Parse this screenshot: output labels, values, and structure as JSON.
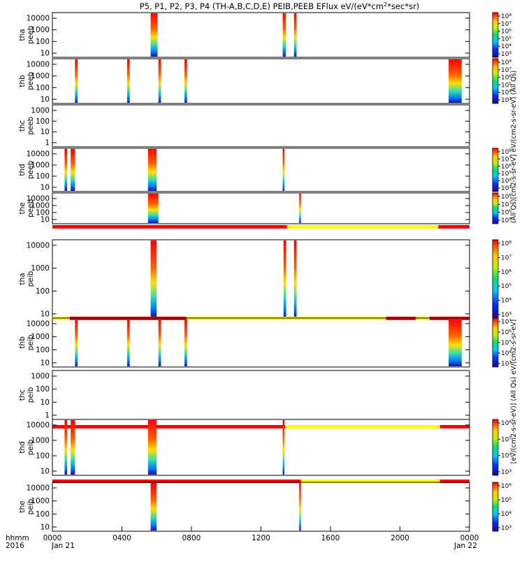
{
  "chart_data": {
    "type": "heatmap",
    "title": "P5, P1, P2, P3, P4 (TH-A,B,C,D,E) PEIB,PEEB EFlux eV/(eV*cm²*sec*sr)",
    "title_base": "P5, P1, P2, P3, P4 (TH-A,B,C,D,E) PEIB,PEEB EFlux eV/(eV*cm",
    "title_sup": "2",
    "title_end": "*sec*sr)",
    "x_axis": {
      "tick_labels": [
        "0000",
        "0400",
        "0800",
        "1200",
        "1600",
        "2000",
        "0000"
      ],
      "ticks_hours": [
        0,
        4,
        8,
        12,
        16,
        20,
        24
      ],
      "date_labels": [
        "Jan 21",
        "Jan 22"
      ],
      "row_label_1": "hhmm",
      "row_label_2": "2016",
      "range_hours": [
        0,
        24
      ]
    },
    "colorbar_label_top": "(All Qs)[cm2-s-sr-eV] eV/(cm2-s-sr-eV) (All Qs)",
    "colorbar_label_bottom": "[eV/(cm2-s-sr-eV)] (All Qs) eV/(cm2-s-sr-eV)",
    "panels": [
      {
        "id": "tha-peeb",
        "label1": "tha",
        "label2": "peeb",
        "yticks": [
          "10000",
          "1000",
          "100",
          "10"
        ],
        "cbar": [
          "10⁸",
          "10⁷",
          "10⁶",
          "10⁵",
          "10⁴",
          "10³"
        ],
        "mode_bar": []
      },
      {
        "id": "thb-peeb",
        "label1": "thb",
        "label2": "peeb",
        "yticks": [
          "10000",
          "1000",
          "100",
          "10"
        ],
        "cbar": [
          "10⁸",
          "10⁷",
          "10⁶",
          "10⁵",
          "10⁴",
          "10³"
        ],
        "mode_bar": []
      },
      {
        "id": "thc-peeb",
        "label1": "thc",
        "label2": "peeb",
        "yticks": [
          "1000",
          "100",
          "10",
          "1"
        ],
        "cbar": [],
        "mode_bar": []
      },
      {
        "id": "thd-peeb",
        "label1": "thd",
        "label2": "peeb",
        "yticks": [
          "10000",
          "1000",
          "100",
          "10"
        ],
        "cbar": [
          "10⁸",
          "10⁷",
          "10⁶",
          "10⁵",
          "10⁴",
          "10³"
        ],
        "mode_bar": []
      },
      {
        "id": "the-peeb",
        "label1": "the",
        "label2": "peeb",
        "yticks": [
          "10000",
          "1000",
          "100",
          "10"
        ],
        "cbar": [
          "10⁸",
          "10⁷",
          "10⁶",
          "10⁵"
        ],
        "mode_bar": []
      },
      {
        "id": "tha-peib",
        "label1": "tha",
        "label2": "peib",
        "yticks": [
          "10000",
          "1000",
          "100",
          "10"
        ],
        "cbar": [
          "10⁸",
          "10⁷",
          "10⁶",
          "10⁵",
          "10⁴",
          "10³"
        ],
        "mode_bar": [
          [
            0,
            13.5,
            "red"
          ],
          [
            13.5,
            22.2,
            "yellow"
          ],
          [
            22.2,
            24,
            "red"
          ]
        ]
      },
      {
        "id": "thb-peib",
        "label1": "thb",
        "label2": "peib",
        "yticks": [
          "10000",
          "1000",
          "100",
          "10"
        ],
        "cbar": [
          "10⁷",
          "10⁶",
          "10⁵",
          "10⁴",
          "10³"
        ],
        "mode_bar": [
          [
            0,
            1.0,
            "yellow"
          ],
          [
            1.0,
            7.7,
            "red"
          ],
          [
            7.7,
            19.2,
            "yellow"
          ],
          [
            19.2,
            20.9,
            "red"
          ],
          [
            20.9,
            21.7,
            "yellow"
          ],
          [
            21.7,
            24,
            "red"
          ]
        ]
      },
      {
        "id": "thc-peib",
        "label1": "thc",
        "label2": "peib",
        "yticks": [
          "1000",
          "100",
          "10",
          "1"
        ],
        "cbar": [],
        "mode_bar": []
      },
      {
        "id": "thd-peib",
        "label1": "thd",
        "label2": "peib",
        "yticks": [
          "10000",
          "1000",
          "100",
          "10"
        ],
        "cbar": [
          "10⁶",
          "10⁵",
          "10⁴",
          "10³"
        ],
        "mode_bar": [
          [
            0,
            13.4,
            "red"
          ],
          [
            13.4,
            22.3,
            "yellow"
          ],
          [
            22.3,
            24,
            "red"
          ]
        ]
      },
      {
        "id": "the-peib",
        "label1": "the",
        "label2": "peib",
        "yticks": [
          "10000",
          "1000",
          "100",
          "10"
        ],
        "cbar": [
          "10⁶",
          "10⁵",
          "10⁴",
          "10³"
        ],
        "mode_bar": [
          [
            0,
            14.3,
            "red"
          ],
          [
            14.3,
            22.3,
            "yellow"
          ],
          [
            22.3,
            24,
            "red"
          ]
        ]
      }
    ],
    "data_intervals": [
      [
        [
          5.65,
          5.75
        ],
        [
          5.75,
          5.85
        ],
        [
          5.85,
          5.95
        ],
        [
          5.95,
          6.05
        ],
        [
          13.25,
          13.35
        ],
        [
          13.35,
          13.42
        ],
        [
          13.9,
          14.05
        ]
      ],
      [
        [
          1.3,
          1.45
        ],
        [
          4.3,
          4.45
        ],
        [
          6.1,
          6.25
        ],
        [
          7.6,
          7.75
        ],
        [
          22.8,
          23.55
        ]
      ],
      [],
      [
        [
          0.7,
          0.85
        ],
        [
          1.05,
          1.3
        ],
        [
          5.5,
          5.65
        ],
        [
          5.65,
          5.8
        ],
        [
          5.8,
          6.0
        ],
        [
          13.25,
          13.35
        ]
      ],
      [
        [
          5.5,
          6.1
        ],
        [
          14.2,
          14.3
        ]
      ],
      [
        [
          5.65,
          6.0
        ],
        [
          13.3,
          13.45
        ],
        [
          13.9,
          14.05
        ]
      ],
      [
        [
          1.3,
          1.45
        ],
        [
          4.3,
          4.45
        ],
        [
          6.1,
          6.25
        ],
        [
          7.6,
          7.75
        ],
        [
          22.8,
          23.55
        ]
      ],
      [],
      [
        [
          0.7,
          0.85
        ],
        [
          1.05,
          1.3
        ],
        [
          5.5,
          6.0
        ],
        [
          13.25,
          13.35
        ]
      ],
      [
        [
          5.65,
          6.0
        ],
        [
          14.2,
          14.3
        ]
      ]
    ]
  }
}
